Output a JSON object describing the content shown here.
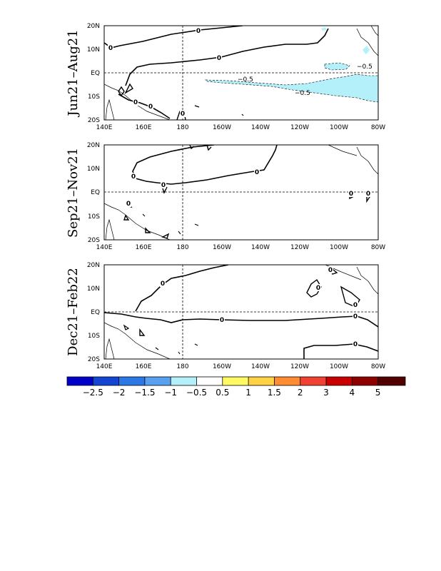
{
  "panels": [
    {
      "title": "Jun21–Aug21",
      "x_ticks": [
        "140E",
        "160E",
        "180",
        "160W",
        "140W",
        "120W",
        "100W",
        "80W"
      ],
      "y_ticks": [
        "20N",
        "10N",
        "EQ",
        "10S",
        "20S"
      ],
      "contour_labels": [
        "0",
        "0",
        "0",
        "0",
        "0",
        "0",
        "−0.5",
        "−0.5",
        "−0.5"
      ]
    },
    {
      "title": "Sep21–Nov21",
      "x_ticks": [
        "140E",
        "160E",
        "180",
        "160W",
        "140W",
        "120W",
        "100W",
        "80W"
      ],
      "y_ticks": [
        "20N",
        "10N",
        "EQ",
        "10S",
        "20S"
      ],
      "contour_labels": [
        "0",
        "0",
        "0",
        "0",
        "0",
        "0"
      ]
    },
    {
      "title": "Dec21–Feb22",
      "x_ticks": [
        "140E",
        "160E",
        "180",
        "160W",
        "140W",
        "120W",
        "100W",
        "80W"
      ],
      "y_ticks": [
        "20N",
        "10N",
        "EQ",
        "10S",
        "20S"
      ],
      "contour_labels": [
        "0",
        "0",
        "0",
        "0",
        "0",
        "0",
        "0"
      ]
    }
  ],
  "colorbar": {
    "labels": [
      "−2.5",
      "−2",
      "−1.5",
      "−1",
      "−0.5",
      "0.5",
      "1",
      "1.5",
      "2",
      "3",
      "4",
      "5"
    ],
    "colors": [
      "#0000c8",
      "#1446d2",
      "#2d78e6",
      "#5aa0f0",
      "#b4f0fa",
      "#ffffff",
      "#fffa64",
      "#ffd246",
      "#ff8c32",
      "#f04132",
      "#c80000",
      "#8c0000",
      "#500000"
    ]
  },
  "colors": {
    "negative_fill": "#b4f0fa"
  }
}
